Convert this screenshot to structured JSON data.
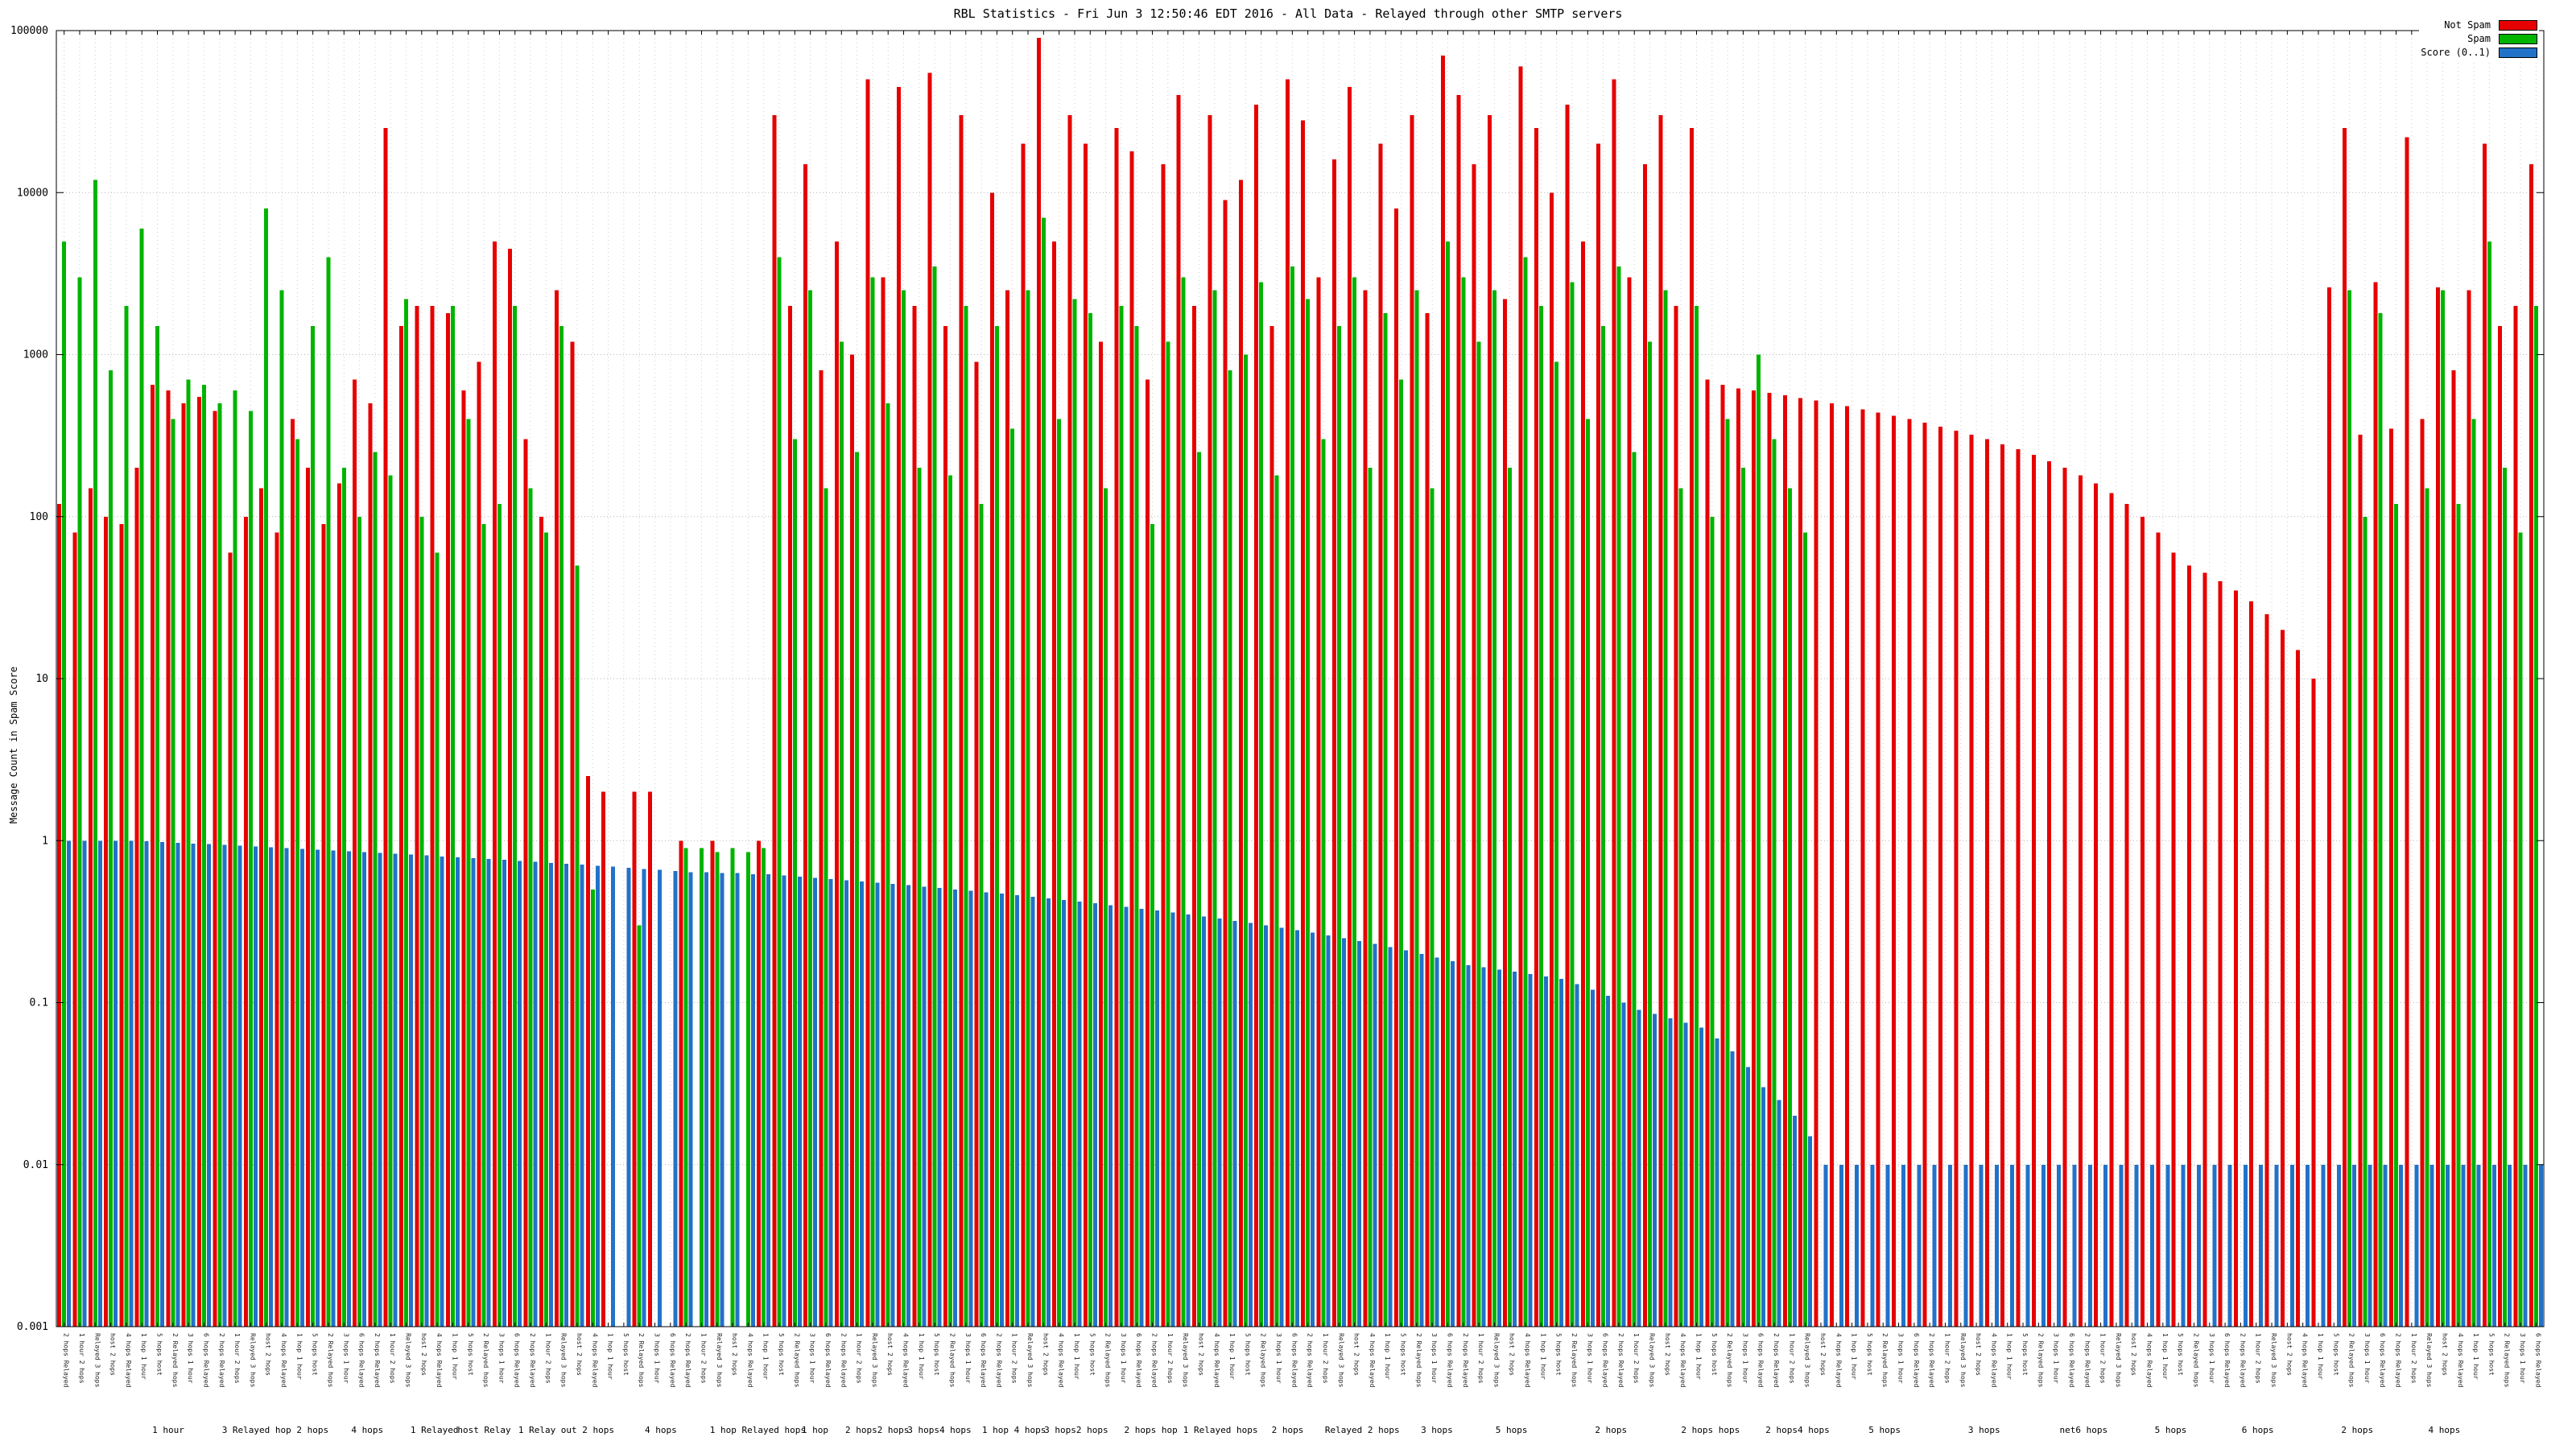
{
  "chart_data": {
    "type": "bar",
    "title": "RBL Statistics - Fri Jun 3 12:50:46 EDT 2016 - All Data - Relayed through other SMTP servers",
    "ylabel": "Message Count in Spam Score",
    "yscale": "log",
    "grid": true,
    "legend_position": "top-right",
    "ylim": [
      0.001,
      100000
    ],
    "ytick_values": [
      100000,
      10000,
      1000,
      100,
      10,
      1,
      0.1,
      0.01,
      0.001
    ],
    "ytick_labels": [
      "100000",
      "10000",
      "1000",
      "100",
      "10",
      "1",
      "0.1",
      "0.01",
      "0.001"
    ],
    "xtick_label_cycle": [
      "2 hops Relayed",
      "1 hour 2 hops",
      "Relayed 3 hops",
      "host 2 hops",
      "4 hops Relayed",
      "1 hop 1 hour",
      "5 hops host",
      "2 Relayed hops",
      "3 hops 1 hour",
      "6 hops Relayed"
    ],
    "group_labels": [
      {
        "pos": 0.045,
        "text": "1 hour"
      },
      {
        "pos": 0.088,
        "text": "3 Relayed hop 2 hops"
      },
      {
        "pos": 0.125,
        "text": "4 hops"
      },
      {
        "pos": 0.152,
        "text": "1 Relayed"
      },
      {
        "pos": 0.172,
        "text": "host Relay"
      },
      {
        "pos": 0.205,
        "text": "1 Relay out 2 hops"
      },
      {
        "pos": 0.243,
        "text": "4 hops"
      },
      {
        "pos": 0.282,
        "text": "1 hop Relayed hops"
      },
      {
        "pos": 0.305,
        "text": "1 hop"
      },
      {
        "pos": 0.33,
        "text": "2 hops2 hops"
      },
      {
        "pos": 0.355,
        "text": "3 hops4 hops"
      },
      {
        "pos": 0.385,
        "text": "1 hop 4 hops"
      },
      {
        "pos": 0.41,
        "text": "3 hops2 hops"
      },
      {
        "pos": 0.44,
        "text": "2 hops hop"
      },
      {
        "pos": 0.468,
        "text": "1 Relayed hops"
      },
      {
        "pos": 0.495,
        "text": "2 hops"
      },
      {
        "pos": 0.525,
        "text": "Relayed 2 hops"
      },
      {
        "pos": 0.555,
        "text": "3 hops"
      },
      {
        "pos": 0.585,
        "text": "5 hops"
      },
      {
        "pos": 0.625,
        "text": "2 hops"
      },
      {
        "pos": 0.665,
        "text": "2 hops hops"
      },
      {
        "pos": 0.7,
        "text": "2 hops4 hops"
      },
      {
        "pos": 0.735,
        "text": "5 hops"
      },
      {
        "pos": 0.775,
        "text": "3 hops"
      },
      {
        "pos": 0.815,
        "text": "net6 hops"
      },
      {
        "pos": 0.85,
        "text": "5 hops"
      },
      {
        "pos": 0.885,
        "text": "6 hops"
      },
      {
        "pos": 0.925,
        "text": "2 hops"
      },
      {
        "pos": 0.96,
        "text": "4 hops"
      }
    ],
    "series": [
      {
        "name": "Not Spam",
        "color": "#e60000",
        "values": [
          120,
          80,
          150,
          100,
          90,
          200,
          650,
          600,
          500,
          550,
          450,
          60,
          100,
          150,
          80,
          400,
          200,
          90,
          160,
          700,
          500,
          25000,
          1500,
          2000,
          2000,
          1800,
          600,
          900,
          5000,
          4500,
          300,
          100,
          2500,
          1200,
          2.5,
          2,
          0,
          2,
          2,
          0,
          1,
          0,
          1,
          0,
          0,
          1,
          30000,
          2000,
          15000,
          800,
          5000,
          1000,
          50000,
          3000,
          45000,
          2000,
          55000,
          1500,
          30000,
          900,
          10000,
          2500,
          20000,
          90000,
          5000,
          30000,
          20000,
          1200,
          25000,
          18000,
          700,
          15000,
          40000,
          2000,
          30000,
          9000,
          12000,
          35000,
          1500,
          50000,
          28000,
          3000,
          16000,
          45000,
          2500,
          20000,
          8000,
          30000,
          1800,
          70000,
          40000,
          15000,
          30000,
          2200,
          60000,
          25000,
          10000,
          35000,
          5000,
          20000,
          50000,
          3000,
          15000,
          30000,
          2000,
          25000,
          700,
          650,
          620,
          600,
          580,
          560,
          540,
          520,
          500,
          480,
          460,
          440,
          420,
          400,
          380,
          360,
          340,
          320,
          300,
          280,
          260,
          240,
          220,
          200,
          180,
          160,
          140,
          120,
          100,
          80,
          60,
          50,
          45,
          40,
          35,
          30,
          25,
          20,
          15,
          10,
          2600,
          25000,
          320,
          2800,
          350,
          22000,
          400,
          2600,
          800,
          2500,
          20000,
          1500,
          2000,
          15000
        ]
      },
      {
        "name": "Spam",
        "color": "#00b400",
        "values": [
          5000,
          3000,
          12000,
          800,
          2000,
          6000,
          1500,
          400,
          700,
          650,
          500,
          600,
          450,
          8000,
          2500,
          300,
          1500,
          4000,
          200,
          100,
          250,
          180,
          2200,
          100,
          60,
          2000,
          400,
          90,
          120,
          2000,
          150,
          80,
          1500,
          50,
          0.5,
          0,
          0,
          0.3,
          0,
          0,
          0.9,
          0.9,
          0.85,
          0.9,
          0.85,
          0.9,
          4000,
          300,
          2500,
          150,
          1200,
          250,
          3000,
          500,
          2500,
          200,
          3500,
          180,
          2000,
          120,
          1500,
          350,
          2500,
          7000,
          400,
          2200,
          1800,
          150,
          2000,
          1500,
          90,
          1200,
          3000,
          250,
          2500,
          800,
          1000,
          2800,
          180,
          3500,
          2200,
          300,
          1500,
          3000,
          200,
          1800,
          700,
          2500,
          150,
          5000,
          3000,
          1200,
          2500,
          200,
          4000,
          2000,
          900,
          2800,
          400,
          1500,
          3500,
          250,
          1200,
          2500,
          150,
          2000,
          100,
          400,
          200,
          1000,
          300,
          150,
          80,
          0,
          0,
          0,
          0,
          0,
          0,
          0,
          0,
          0,
          0,
          0,
          0,
          0,
          0,
          0,
          0,
          0,
          0,
          0,
          0,
          0,
          0,
          0,
          0,
          0,
          0,
          0,
          0,
          0,
          0,
          0,
          0,
          0,
          0,
          2500,
          100,
          1800,
          120,
          0,
          150,
          2500,
          120,
          400,
          5000,
          200,
          80,
          2000
        ]
      },
      {
        "name": "Score (0..1)",
        "color": "#2272c8",
        "values": [
          1,
          1,
          1,
          1,
          1,
          0.99,
          0.98,
          0.97,
          0.96,
          0.95,
          0.94,
          0.93,
          0.92,
          0.91,
          0.9,
          0.89,
          0.88,
          0.87,
          0.86,
          0.85,
          0.84,
          0.83,
          0.82,
          0.81,
          0.8,
          0.79,
          0.78,
          0.77,
          0.76,
          0.75,
          0.74,
          0.73,
          0.72,
          0.71,
          0.7,
          0.69,
          0.68,
          0.67,
          0.66,
          0.65,
          0.64,
          0.64,
          0.63,
          0.63,
          0.62,
          0.62,
          0.61,
          0.6,
          0.59,
          0.58,
          0.57,
          0.56,
          0.55,
          0.54,
          0.53,
          0.52,
          0.51,
          0.5,
          0.49,
          0.48,
          0.47,
          0.46,
          0.45,
          0.44,
          0.43,
          0.42,
          0.41,
          0.4,
          0.39,
          0.38,
          0.37,
          0.36,
          0.35,
          0.34,
          0.33,
          0.32,
          0.31,
          0.3,
          0.29,
          0.28,
          0.27,
          0.26,
          0.25,
          0.24,
          0.23,
          0.22,
          0.21,
          0.2,
          0.19,
          0.18,
          0.17,
          0.165,
          0.16,
          0.155,
          0.15,
          0.145,
          0.14,
          0.13,
          0.12,
          0.11,
          0.1,
          0.09,
          0.085,
          0.08,
          0.075,
          0.07,
          0.06,
          0.05,
          0.04,
          0.03,
          0.025,
          0.02,
          0.015,
          0.01,
          0.01,
          0.01,
          0.01,
          0.01,
          0.01,
          0.01,
          0.01,
          0.01,
          0.01,
          0.01,
          0.01,
          0.01,
          0.01,
          0.01,
          0.01,
          0.01,
          0.01,
          0.01,
          0.01,
          0.01,
          0.01,
          0.01,
          0.01,
          0.01,
          0.01,
          0.01,
          0.01,
          0.01,
          0.01,
          0.01,
          0.01,
          0.01,
          0.01,
          0.01,
          0.01,
          0.01,
          0.01,
          0.01,
          0.01,
          0.01,
          0.01,
          0.01,
          0.01,
          0.01,
          0.01,
          0.01
        ]
      }
    ]
  }
}
